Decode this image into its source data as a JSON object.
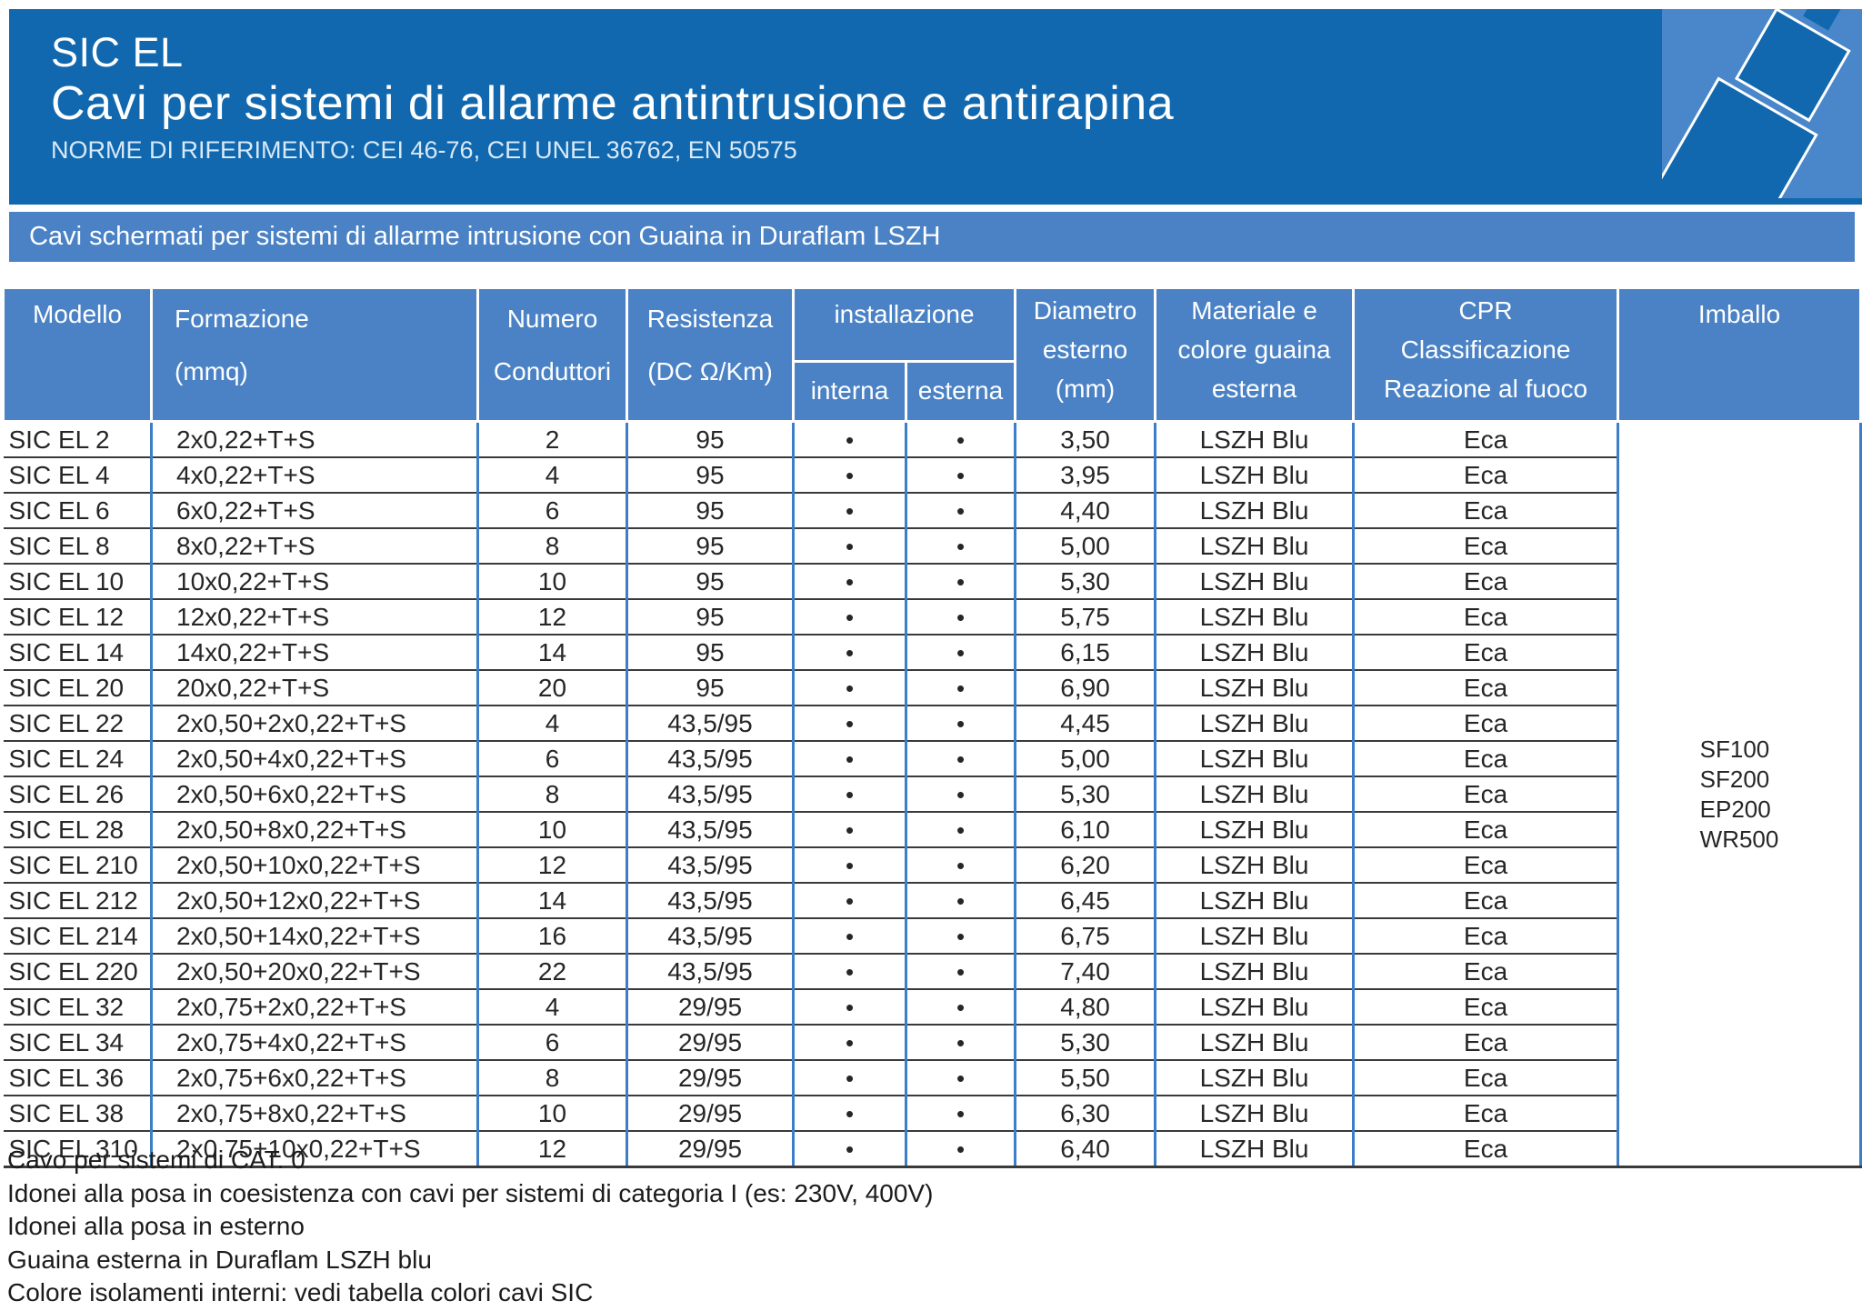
{
  "header": {
    "title": "SIC EL",
    "subtitle": "Cavi per sistemi di allarme antintrusione e antirapina",
    "norms": "NORME DI RIFERIMENTO: CEI 46-76, CEI UNEL 36762, EN 50575"
  },
  "banner": {
    "text": "Cavi schermati per sistemi di allarme intrusione con Guaina in Duraflam LSZH"
  },
  "colors": {
    "hero_blue": "#1168ae",
    "banner_blue": "#4a82c5",
    "grid_blue": "#3c7ec8",
    "logo_bg_blue": "#4a87ca"
  },
  "icons": {
    "logo": "cable-connector-icon"
  },
  "table": {
    "head": {
      "modello": "Modello",
      "formazione": "Formazione\n(mmq)",
      "conduttori": "Numero\nConduttori",
      "resistenza": "Resistenza\n(DC Ω/Km)",
      "installazione": "installazione",
      "interna": "interna",
      "esterna": "esterna",
      "diametro": "Diametro\nesterno\n(mm)",
      "materiale": "Materiale e\ncolore guaina\nesterna",
      "cpr": "CPR\nClassificazione\nReazione al fuoco",
      "imballo": "Imballo"
    },
    "rows": [
      {
        "modello": "SIC EL 2",
        "formazione": "2x0,22+T+S",
        "conduttori": "2",
        "resistenza": "95",
        "interna": "•",
        "esterna": "•",
        "diametro": "3,50",
        "materiale": "LSZH Blu",
        "cpr": "Eca"
      },
      {
        "modello": "SIC EL 4",
        "formazione": "4x0,22+T+S",
        "conduttori": "4",
        "resistenza": "95",
        "interna": "•",
        "esterna": "•",
        "diametro": "3,95",
        "materiale": "LSZH Blu",
        "cpr": "Eca"
      },
      {
        "modello": "SIC EL 6",
        "formazione": "6x0,22+T+S",
        "conduttori": "6",
        "resistenza": "95",
        "interna": "•",
        "esterna": "•",
        "diametro": "4,40",
        "materiale": "LSZH Blu",
        "cpr": "Eca"
      },
      {
        "modello": "SIC EL 8",
        "formazione": "8x0,22+T+S",
        "conduttori": "8",
        "resistenza": "95",
        "interna": "•",
        "esterna": "•",
        "diametro": "5,00",
        "materiale": "LSZH Blu",
        "cpr": "Eca"
      },
      {
        "modello": "SIC EL 10",
        "formazione": "10x0,22+T+S",
        "conduttori": "10",
        "resistenza": "95",
        "interna": "•",
        "esterna": "•",
        "diametro": "5,30",
        "materiale": "LSZH Blu",
        "cpr": "Eca"
      },
      {
        "modello": "SIC EL 12",
        "formazione": "12x0,22+T+S",
        "conduttori": "12",
        "resistenza": "95",
        "interna": "•",
        "esterna": "•",
        "diametro": "5,75",
        "materiale": "LSZH Blu",
        "cpr": "Eca"
      },
      {
        "modello": "SIC EL 14",
        "formazione": "14x0,22+T+S",
        "conduttori": "14",
        "resistenza": "95",
        "interna": "•",
        "esterna": "•",
        "diametro": "6,15",
        "materiale": "LSZH Blu",
        "cpr": "Eca"
      },
      {
        "modello": "SIC EL 20",
        "formazione": "20x0,22+T+S",
        "conduttori": "20",
        "resistenza": "95",
        "interna": "•",
        "esterna": "•",
        "diametro": "6,90",
        "materiale": "LSZH Blu",
        "cpr": "Eca"
      },
      {
        "modello": "SIC EL 22",
        "formazione": "2x0,50+2x0,22+T+S",
        "conduttori": "4",
        "resistenza": "43,5/95",
        "interna": "•",
        "esterna": "•",
        "diametro": "4,45",
        "materiale": "LSZH Blu",
        "cpr": "Eca"
      },
      {
        "modello": "SIC EL 24",
        "formazione": "2x0,50+4x0,22+T+S",
        "conduttori": "6",
        "resistenza": "43,5/95",
        "interna": "•",
        "esterna": "•",
        "diametro": "5,00",
        "materiale": "LSZH Blu",
        "cpr": "Eca"
      },
      {
        "modello": "SIC EL 26",
        "formazione": "2x0,50+6x0,22+T+S",
        "conduttori": "8",
        "resistenza": "43,5/95",
        "interna": "•",
        "esterna": "•",
        "diametro": "5,30",
        "materiale": "LSZH Blu",
        "cpr": "Eca"
      },
      {
        "modello": "SIC EL 28",
        "formazione": "2x0,50+8x0,22+T+S",
        "conduttori": "10",
        "resistenza": "43,5/95",
        "interna": "•",
        "esterna": "•",
        "diametro": "6,10",
        "materiale": "LSZH Blu",
        "cpr": "Eca"
      },
      {
        "modello": "SIC EL 210",
        "formazione": "2x0,50+10x0,22+T+S",
        "conduttori": "12",
        "resistenza": "43,5/95",
        "interna": "•",
        "esterna": "•",
        "diametro": "6,20",
        "materiale": "LSZH Blu",
        "cpr": "Eca"
      },
      {
        "modello": "SIC EL 212",
        "formazione": "2x0,50+12x0,22+T+S",
        "conduttori": "14",
        "resistenza": "43,5/95",
        "interna": "•",
        "esterna": "•",
        "diametro": "6,45",
        "materiale": "LSZH Blu",
        "cpr": "Eca"
      },
      {
        "modello": "SIC EL 214",
        "formazione": "2x0,50+14x0,22+T+S",
        "conduttori": "16",
        "resistenza": "43,5/95",
        "interna": "•",
        "esterna": "•",
        "diametro": "6,75",
        "materiale": "LSZH Blu",
        "cpr": "Eca"
      },
      {
        "modello": "SIC EL 220",
        "formazione": "2x0,50+20x0,22+T+S",
        "conduttori": "22",
        "resistenza": "43,5/95",
        "interna": "•",
        "esterna": "•",
        "diametro": "7,40",
        "materiale": "LSZH Blu",
        "cpr": "Eca"
      },
      {
        "modello": "SIC EL 32",
        "formazione": "2x0,75+2x0,22+T+S",
        "conduttori": "4",
        "resistenza": "29/95",
        "interna": "•",
        "esterna": "•",
        "diametro": "4,80",
        "materiale": "LSZH Blu",
        "cpr": "Eca"
      },
      {
        "modello": "SIC EL 34",
        "formazione": "2x0,75+4x0,22+T+S",
        "conduttori": "6",
        "resistenza": "29/95",
        "interna": "•",
        "esterna": "•",
        "diametro": "5,30",
        "materiale": "LSZH Blu",
        "cpr": "Eca"
      },
      {
        "modello": "SIC EL 36",
        "formazione": "2x0,75+6x0,22+T+S",
        "conduttori": "8",
        "resistenza": "29/95",
        "interna": "•",
        "esterna": "•",
        "diametro": "5,50",
        "materiale": "LSZH Blu",
        "cpr": "Eca"
      },
      {
        "modello": "SIC EL 38",
        "formazione": "2x0,75+8x0,22+T+S",
        "conduttori": "10",
        "resistenza": "29/95",
        "interna": "•",
        "esterna": "•",
        "diametro": "6,30",
        "materiale": "LSZH Blu",
        "cpr": "Eca"
      },
      {
        "modello": "SIC EL 310",
        "formazione": "2x0,75+10x0,22+T+S",
        "conduttori": "12",
        "resistenza": "29/95",
        "interna": "•",
        "esterna": "•",
        "diametro": "6,40",
        "materiale": "LSZH Blu",
        "cpr": "Eca"
      }
    ],
    "imballo": [
      "SF100",
      "SF200",
      "EP200",
      "WR500"
    ]
  },
  "notes": [
    "Cavo per sistemi di CAT. 0",
    "Idonei alla posa in coesistenza con cavi per sistemi di categoria I (es: 230V, 400V)",
    "Idonei alla posa in esterno",
    "Guaina esterna in Duraflam LSZH blu",
    "Colore isolamenti interni: vedi tabella colori cavi SIC"
  ]
}
